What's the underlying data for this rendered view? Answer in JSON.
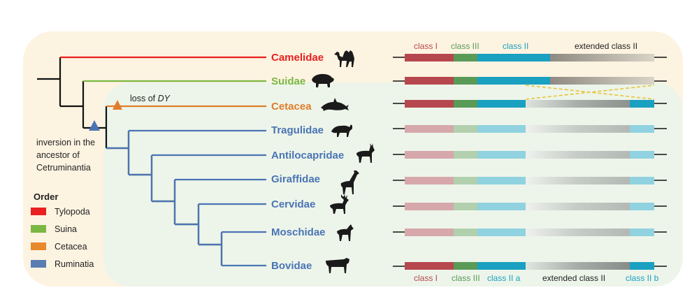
{
  "tree": {
    "taxa": [
      {
        "name": "Camelidae",
        "order": "Tylopoda"
      },
      {
        "name": "Suidae",
        "order": "Suina"
      },
      {
        "name": "Cetacea",
        "order": "Cetacea"
      },
      {
        "name": "Tragulidae",
        "order": "Ruminatia"
      },
      {
        "name": "Antilocapridae",
        "order": "Ruminatia"
      },
      {
        "name": "Giraffidae",
        "order": "Ruminatia"
      },
      {
        "name": "Cervidae",
        "order": "Ruminatia"
      },
      {
        "name": "Moschidae",
        "order": "Ruminatia"
      },
      {
        "name": "Bovidae",
        "order": "Ruminatia"
      }
    ],
    "events": {
      "loss_prefix": "loss of ",
      "loss_gene": "DY",
      "inversion_lines": [
        "inversion in the",
        "ancestor of",
        "Cetruminantia"
      ]
    }
  },
  "legend": {
    "title": "Order",
    "items": [
      {
        "label": "Tylopoda",
        "color": "#e8201f"
      },
      {
        "label": "Suina",
        "color": "#7ab744"
      },
      {
        "label": "Cetacea",
        "color": "#e8892c"
      },
      {
        "label": "Ruminatia",
        "color": "#5a7db3"
      }
    ]
  },
  "chromosome": {
    "top_labels": [
      "class I",
      "class III",
      "class II",
      "extended class II"
    ],
    "bottom_labels": [
      "class I",
      "class III",
      "class II a",
      "extended class II",
      "class II b"
    ]
  },
  "colors": {
    "Tylopoda": "#e8201f",
    "Suina": "#7ab744",
    "Cetacea": "#e07d2a",
    "Ruminatia": "#4a74b4",
    "classI": "#b7474f",
    "classIII": "#5a9a57",
    "classII": "#1aa0c0",
    "tree_root": "#111111"
  },
  "icons": [
    "camel-icon",
    "pig-icon",
    "dolphin-icon",
    "mouse-deer-icon",
    "pronghorn-icon",
    "giraffe-icon",
    "deer-icon",
    "musk-deer-icon",
    "cow-icon"
  ]
}
